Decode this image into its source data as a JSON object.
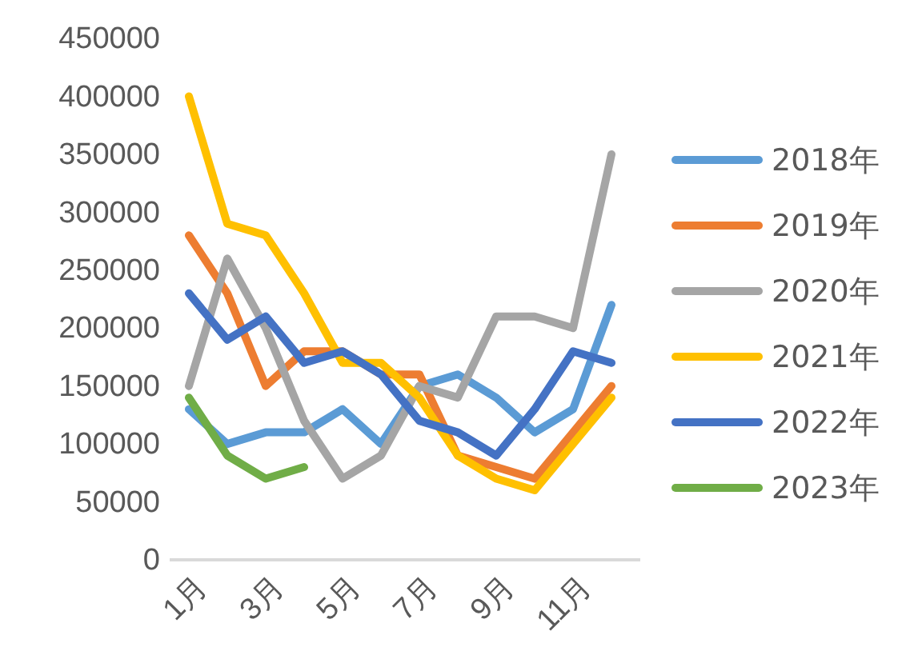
{
  "chart_data": {
    "type": "line",
    "categories": [
      "1月",
      null,
      "3月",
      null,
      "5月",
      null,
      "7月",
      null,
      "9月",
      null,
      "11月",
      null
    ],
    "ylim": [
      0,
      450000
    ],
    "yticks": [
      0,
      50000,
      100000,
      150000,
      200000,
      250000,
      300000,
      350000,
      400000,
      450000
    ],
    "grid": false,
    "legend": "right",
    "marker": "none",
    "series": [
      {
        "name": "2018年",
        "color": "#5b9bd5",
        "values": [
          130000,
          100000,
          110000,
          110000,
          130000,
          100000,
          150000,
          160000,
          140000,
          110000,
          130000,
          220000
        ]
      },
      {
        "name": "2019年",
        "color": "#ed7d31",
        "values": [
          280000,
          230000,
          150000,
          180000,
          180000,
          160000,
          160000,
          90000,
          80000,
          70000,
          110000,
          150000
        ]
      },
      {
        "name": "2020年",
        "color": "#a5a5a5",
        "values": [
          150000,
          260000,
          200000,
          120000,
          70000,
          90000,
          150000,
          140000,
          210000,
          210000,
          200000,
          350000
        ]
      },
      {
        "name": "2021年",
        "color": "#ffc000",
        "values": [
          400000,
          290000,
          280000,
          230000,
          170000,
          170000,
          140000,
          90000,
          70000,
          60000,
          100000,
          140000
        ]
      },
      {
        "name": "2022年",
        "color": "#4472c4",
        "values": [
          230000,
          190000,
          210000,
          170000,
          180000,
          160000,
          120000,
          110000,
          90000,
          130000,
          180000,
          170000
        ]
      },
      {
        "name": "2023年",
        "color": "#70ad47",
        "values": [
          140000,
          90000,
          70000,
          80000,
          null,
          null,
          null,
          null,
          null,
          null,
          null,
          null
        ]
      }
    ]
  }
}
